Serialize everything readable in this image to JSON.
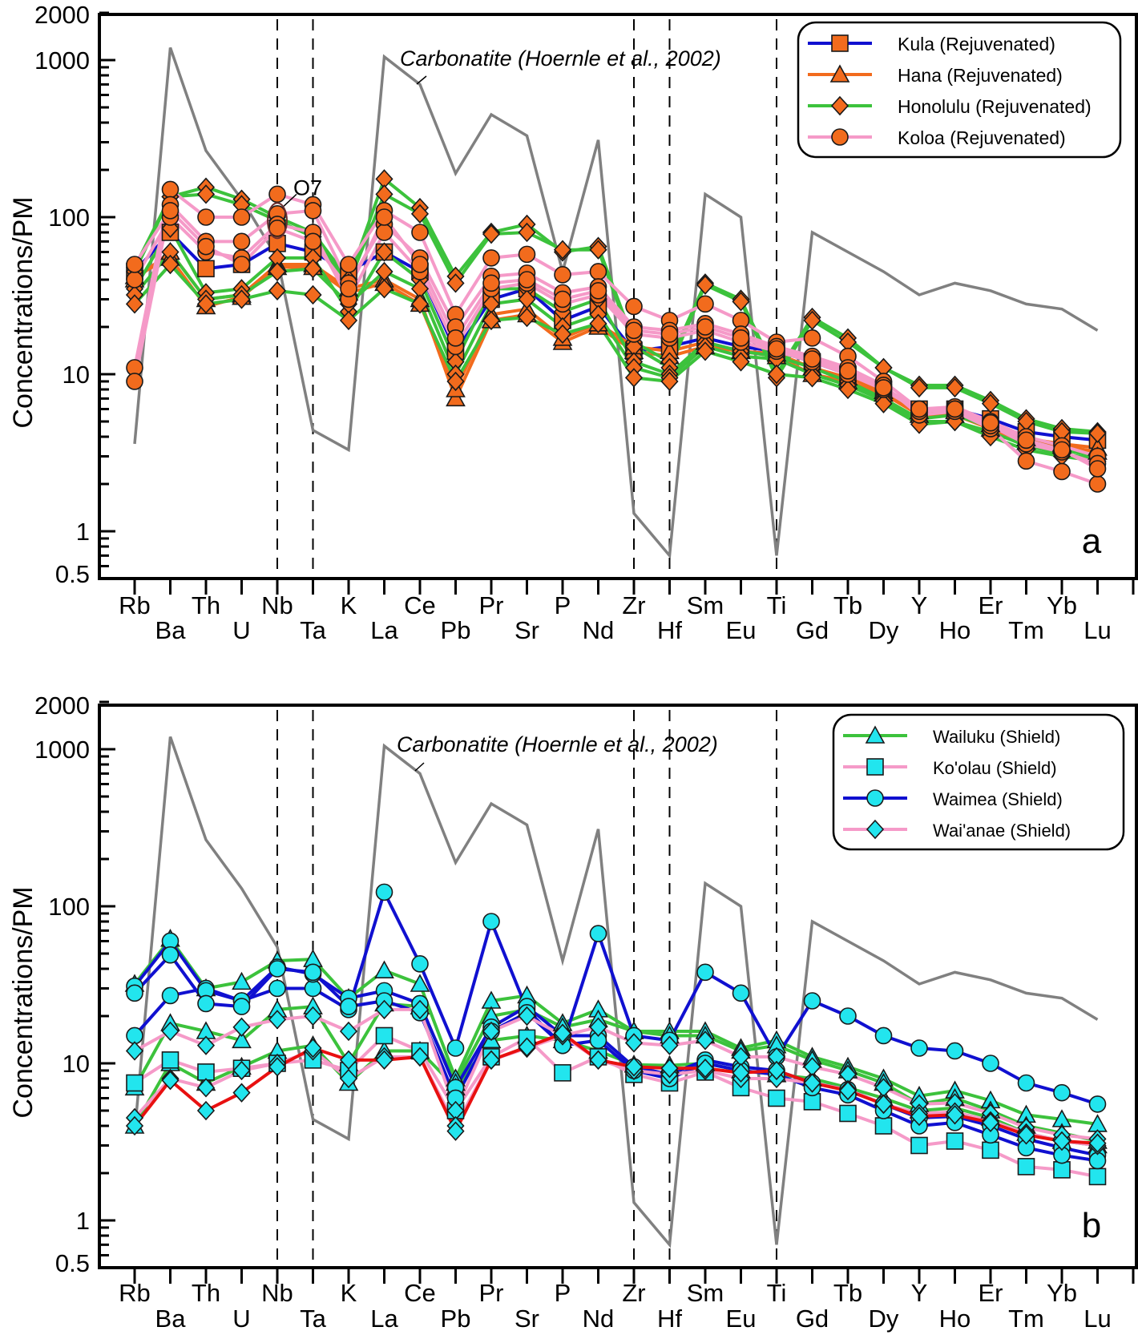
{
  "chart_data": [
    {
      "panel_label": "a",
      "type": "line",
      "yscale": "log",
      "ylabel": "Concentrations/PM",
      "ylim": [
        0.5,
        2000
      ],
      "ytick_labels": [
        "2000",
        "1000",
        "100",
        "10",
        "1",
        "0.5"
      ],
      "yticks": [
        2000,
        1000,
        100,
        10,
        1,
        0.5
      ],
      "categories": [
        "Rb",
        "Ba",
        "Th",
        "U",
        "Nb",
        "Ta",
        "K",
        "La",
        "Ce",
        "Pb",
        "Pr",
        "Sr",
        "P",
        "Nd",
        "Zr",
        "Hf",
        "Sm",
        "Eu",
        "Ti",
        "Gd",
        "Tb",
        "Dy",
        "Y",
        "Ho",
        "Er",
        "Tm",
        "Yb",
        "Lu"
      ],
      "vertical_dashed_at": [
        "Nb",
        "Ta",
        "Zr",
        "Hf",
        "Ti"
      ],
      "legend": {
        "placement": "top-right",
        "entries": [
          {
            "label": "Kula (Rejuvenated)",
            "line_color": "#1010d0",
            "marker": "square",
            "marker_fill": "#f26b1d"
          },
          {
            "label": "Hana (Rejuvenated)",
            "line_color": "#f26b1d",
            "marker": "triangle",
            "marker_fill": "#f26b1d"
          },
          {
            "label": "Honolulu (Rejuvenated)",
            "line_color": "#3cc23c",
            "marker": "diamond",
            "marker_fill": "#f26b1d"
          },
          {
            "label": "Koloa (Rejuvenated)",
            "line_color": "#f59ac8",
            "marker": "circle",
            "marker_fill": "#f26b1d"
          }
        ]
      },
      "annotations": [
        {
          "text": "Carbonatite (Hoernle et al., 2002)",
          "italic": true,
          "points_to": "Ce"
        },
        {
          "text": "O7",
          "points_to": "Nb"
        }
      ],
      "reference_series": {
        "name": "Carbonatite (Hoernle et al., 2002)",
        "color": "#808080",
        "values": [
          3.6,
          1200,
          265,
          130,
          55,
          4.4,
          3.3,
          1050,
          700,
          190,
          450,
          330,
          45,
          310,
          1.3,
          0.7,
          140,
          100,
          0.7,
          80,
          60,
          45,
          32,
          38,
          34,
          28,
          26,
          19
        ]
      },
      "series": [
        {
          "name": "Kula (Rejuvenated)",
          "marker": "square",
          "line_color": "#1010d0",
          "values": [
            45,
            80,
            47,
            50,
            68,
            60,
            45,
            60,
            45,
            14,
            30,
            35,
            22,
            27,
            14,
            15,
            17,
            15,
            14,
            12,
            10,
            8,
            6,
            6,
            5.2,
            4.3,
            4,
            3.8
          ]
        },
        {
          "name": "Hana (Rejuvenated)",
          "marker": "triangle",
          "line_color": "#f26b1d",
          "values": [
            40,
            60,
            30,
            32,
            50,
            50,
            35,
            40,
            30,
            7,
            22,
            24,
            16,
            20,
            14,
            13,
            15,
            14,
            13,
            10,
            9,
            7.5,
            5.5,
            5.5,
            4.5,
            3.7,
            3.5,
            3.2
          ]
        },
        {
          "name": "Hana (Rejuvenated)",
          "marker": "triangle",
          "line_color": "#f26b1d",
          "values": [
            42,
            55,
            27,
            31,
            48,
            48,
            33,
            38,
            28,
            8,
            24,
            26,
            17,
            21,
            15,
            14,
            16,
            14,
            13.5,
            11,
            9.5,
            7.8,
            5.8,
            5.8,
            4.8,
            3.9,
            3.6,
            3.4
          ]
        },
        {
          "name": "Honolulu (Rejuvenated)",
          "marker": "diamond",
          "line_color": "#3cc23c",
          "values": [
            45,
            135,
            155,
            130,
            100,
            80,
            40,
            175,
            115,
            42,
            80,
            90,
            60,
            65,
            16,
            12,
            38,
            30,
            10,
            23,
            17,
            11,
            8.5,
            8.5,
            6.8,
            5.2,
            4.5,
            4.3
          ]
        },
        {
          "name": "Honolulu (Rejuvenated)",
          "marker": "diamond",
          "line_color": "#3cc23c",
          "values": [
            48,
            135,
            140,
            120,
            95,
            75,
            38,
            140,
            105,
            38,
            78,
            80,
            62,
            62,
            15,
            11,
            37,
            29,
            9.5,
            22,
            16,
            11,
            8.2,
            8.2,
            6.5,
            5,
            4.3,
            4.2
          ]
        },
        {
          "name": "Honolulu (Rejuvenated)",
          "marker": "diamond",
          "line_color": "#3cc23c",
          "values": [
            35,
            85,
            33,
            35,
            55,
            55,
            25,
            60,
            40,
            12,
            35,
            35,
            25,
            30,
            12,
            10,
            16,
            14,
            13,
            11,
            9,
            7,
            5.2,
            5.5,
            4.6,
            3.8,
            3.3,
            3
          ]
        },
        {
          "name": "Honolulu (Rejuvenated)",
          "marker": "diamond",
          "line_color": "#3cc23c",
          "values": [
            32,
            60,
            30,
            32,
            45,
            47,
            28,
            45,
            35,
            10,
            28,
            30,
            20,
            24,
            11,
            9.5,
            15,
            13,
            12.5,
            10,
            8.5,
            6.8,
            5,
            5,
            4.3,
            3.5,
            3.1,
            2.9
          ]
        },
        {
          "name": "Honolulu (Rejuvenated)",
          "marker": "diamond",
          "line_color": "#3cc23c",
          "values": [
            28,
            50,
            28,
            30,
            34,
            32,
            22,
            35,
            28,
            9,
            22,
            23,
            18,
            21,
            9.5,
            9,
            14,
            12,
            10,
            9.5,
            8,
            6.5,
            4.8,
            5,
            4,
            3.3,
            3,
            2.8
          ]
        },
        {
          "name": "Koloa (Rejuvenated)",
          "marker": "circle",
          "line_color": "#f59ac8",
          "values": [
            11,
            150,
            100,
            100,
            140,
            120,
            50,
            110,
            80,
            24,
            55,
            58,
            43,
            45,
            27,
            22,
            28,
            22,
            16,
            17,
            13,
            9,
            6,
            6.2,
            5,
            4,
            3.5,
            3
          ]
        },
        {
          "name": "Koloa (Rejuvenated)",
          "marker": "circle",
          "line_color": "#f59ac8",
          "values": [
            9,
            120,
            70,
            70,
            105,
            110,
            38,
            90,
            55,
            20,
            42,
            44,
            33,
            36,
            20,
            19,
            21,
            18,
            15,
            13,
            11,
            8.5,
            5.5,
            5.8,
            4.5,
            2.8,
            2.4,
            2
          ]
        },
        {
          "name": "Koloa (Rejuvenated)",
          "marker": "circle",
          "line_color": "#f59ac8",
          "values": [
            40,
            100,
            60,
            55,
            90,
            80,
            30,
            80,
            45,
            15,
            35,
            38,
            28,
            32,
            18,
            17,
            19,
            16,
            14,
            12,
            10,
            8,
            5.8,
            6,
            4.7,
            3.6,
            3.2,
            2.7
          ]
        },
        {
          "name": "Koloa (Rejuvenated)",
          "marker": "circle",
          "line_color": "#f59ac8",
          "values": [
            50,
            110,
            65,
            50,
            85,
            70,
            35,
            100,
            50,
            17,
            38,
            40,
            30,
            34,
            19,
            18,
            20,
            17,
            14.5,
            12.5,
            10.5,
            8.2,
            6,
            6,
            4.9,
            3.8,
            3.3,
            2.5
          ]
        }
      ]
    },
    {
      "panel_label": "b",
      "type": "line",
      "yscale": "log",
      "ylabel": "Concentrations/PM",
      "ylim": [
        0.5,
        2000
      ],
      "ytick_labels": [
        "2000",
        "1000",
        "100",
        "10",
        "1",
        "0.5"
      ],
      "yticks": [
        2000,
        1000,
        100,
        10,
        1,
        0.5
      ],
      "categories": [
        "Rb",
        "Ba",
        "Th",
        "U",
        "Nb",
        "Ta",
        "K",
        "La",
        "Ce",
        "Pb",
        "Pr",
        "Sr",
        "P",
        "Nd",
        "Zr",
        "Hf",
        "Sm",
        "Eu",
        "Ti",
        "Gd",
        "Tb",
        "Dy",
        "Y",
        "Ho",
        "Er",
        "Tm",
        "Yb",
        "Lu"
      ],
      "vertical_dashed_at": [
        "Nb",
        "Ta",
        "Zr",
        "Hf",
        "Ti"
      ],
      "legend": {
        "placement": "top-right",
        "entries": [
          {
            "label": "Wailuku (Shield)",
            "line_color": "#3cc23c",
            "marker": "triangle",
            "marker_fill": "#22e5ee"
          },
          {
            "label": "Ko'olau (Shield)",
            "line_color": "#f59ac8",
            "marker": "square",
            "marker_fill": "#22e5ee"
          },
          {
            "label": "Waimea (Shield)",
            "line_color": "#1010d0",
            "marker": "circle",
            "marker_fill": "#22e5ee"
          },
          {
            "label": "Wai'anae (Shield)",
            "line_color": "#f59ac8",
            "marker": "diamond",
            "marker_fill": "#22e5ee"
          }
        ]
      },
      "annotations": [
        {
          "text": "Carbonatite (Hoernle et al., 2002)",
          "italic": true,
          "points_to": "Ce"
        }
      ],
      "reference_series": {
        "name": "Carbonatite (Hoernle et al., 2002)",
        "color": "#808080",
        "values": [
          3.6,
          1200,
          265,
          130,
          55,
          4.4,
          3.3,
          1050,
          700,
          190,
          450,
          330,
          45,
          310,
          1.3,
          0.7,
          140,
          100,
          0.7,
          80,
          60,
          45,
          32,
          38,
          34,
          28,
          26,
          19
        ]
      },
      "series": [
        {
          "name": "Wailuku (Shield)",
          "marker": "triangle",
          "line_color": "#3cc23c",
          "values": [
            32,
            62,
            30,
            33,
            45,
            46,
            26,
            39,
            32,
            8,
            25,
            27,
            18,
            22,
            16,
            16,
            16,
            12.5,
            14,
            11,
            9.5,
            8,
            6.2,
            6.7,
            5.8,
            4.7,
            4.4,
            4.1
          ]
        },
        {
          "name": "Wailuku (Shield)",
          "marker": "triangle",
          "line_color": "#3cc23c",
          "values": [
            7,
            18,
            16,
            14,
            22,
            23,
            10,
            24,
            23,
            7.5,
            20,
            22,
            17,
            19,
            16,
            15,
            15,
            12,
            13,
            10.5,
            9,
            7.5,
            5.5,
            6,
            5,
            4,
            3.6,
            3.2
          ]
        },
        {
          "name": "Wailuku (Shield)",
          "marker": "triangle",
          "line_color": "#3cc23c",
          "values": [
            4,
            10,
            7.5,
            9.5,
            12,
            13,
            7.5,
            12,
            12,
            7,
            14,
            15,
            14,
            12,
            9.8,
            9.7,
            10,
            9,
            8.5,
            8,
            7,
            6,
            5,
            5.2,
            4.5,
            3.6,
            3.2,
            3
          ]
        },
        {
          "name": "Ko'olau (Shield)",
          "marker": "square",
          "line_color": "#f59ac8",
          "values": [
            7.5,
            10.5,
            8.8,
            9.3,
            10,
            10.5,
            9,
            15,
            12,
            5,
            11,
            14.5,
            8.7,
            11,
            8.5,
            7.5,
            8.8,
            7,
            6,
            5.7,
            4.8,
            4,
            3,
            3.2,
            2.8,
            2.2,
            2.1,
            1.9
          ]
        },
        {
          "name": "Waimea (Shield)",
          "marker": "circle",
          "line_color": "#1010d0",
          "values": [
            15,
            27,
            30,
            25,
            30,
            30,
            22,
            123,
            43,
            12.5,
            80,
            22,
            13,
            67,
            15,
            14,
            38,
            28,
            11,
            25,
            20,
            15,
            12.5,
            12,
            10,
            7.5,
            6.5,
            5.5
          ]
        },
        {
          "name": "Waimea (Shield)",
          "marker": "circle",
          "line_color": "#1010d0",
          "values": [
            31,
            60,
            29,
            25,
            41,
            37,
            26,
            29,
            24,
            7,
            17,
            23,
            15,
            15,
            9.5,
            8.5,
            10.5,
            9.5,
            9,
            7.5,
            6.8,
            5.5,
            4.5,
            4.6,
            4,
            3.3,
            2.9,
            2.6
          ]
        },
        {
          "name": "Waimea (Shield)",
          "marker": "circle",
          "line_color": "#1010d0",
          "values": [
            28,
            49,
            24,
            23,
            40,
            38,
            23,
            25,
            21,
            6,
            16,
            21,
            13,
            14,
            9,
            8,
            10,
            9,
            8.5,
            7,
            6.3,
            5,
            4,
            4.2,
            3.5,
            2.9,
            2.6,
            2.4
          ]
        },
        {
          "name": "Wai'anae (Shield)",
          "marker": "diamond",
          "line_color": "#f59ac8",
          "values": [
            12,
            16,
            13,
            17,
            19,
            20,
            16,
            22,
            22,
            5,
            16,
            20,
            15,
            17,
            13.5,
            13,
            14,
            11,
            11,
            9.5,
            8.5,
            7,
            5.5,
            5.6,
            4.8,
            3.9,
            3.5,
            3.3
          ]
        },
        {
          "name": "Wai'anae (Shield)",
          "marker": "diamond",
          "line_color": "#f59ac8",
          "values": [
            4.5,
            8,
            7,
            9,
            10,
            12,
            8,
            11,
            11,
            4,
            10.5,
            12.5,
            15,
            10.5,
            9,
            8.5,
            9,
            8,
            8,
            7.5,
            6.8,
            5.5,
            4.8,
            4.9,
            4.3,
            3.6,
            3.2,
            3
          ]
        },
        {
          "name": "Wai'anae (Shield, red)",
          "marker": "diamond",
          "line_color": "#e81010",
          "values": [
            4,
            7.8,
            5,
            6.5,
            9.5,
            12.5,
            10.5,
            10.5,
            11,
            3.7,
            10.5,
            12.7,
            15.5,
            10.5,
            9.5,
            9.3,
            9.3,
            8.7,
            9,
            7.5,
            6.7,
            5.5,
            4.6,
            4.7,
            4.2,
            3.5,
            3.2,
            3.1
          ]
        }
      ]
    }
  ]
}
